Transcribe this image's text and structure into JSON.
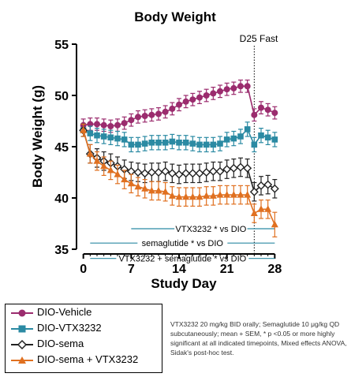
{
  "chart_data": {
    "type": "line",
    "title": "Body Weight",
    "xlabel": "Study Day",
    "ylabel": "Body Weight (g)",
    "xlim": [
      -1,
      29
    ],
    "ylim": [
      35,
      55
    ],
    "xticks": [
      0,
      7,
      14,
      21,
      28
    ],
    "yticks": [
      35,
      40,
      45,
      50,
      55
    ],
    "x": [
      0,
      1,
      2,
      3,
      4,
      5,
      6,
      7,
      8,
      9,
      10,
      11,
      12,
      13,
      14,
      15,
      16,
      17,
      18,
      19,
      20,
      21,
      22,
      23,
      24,
      25,
      26,
      27,
      28
    ],
    "annotation": "D25 Fast",
    "annotation_x": 25,
    "series": [
      {
        "name": "DIO-Vehicle",
        "color": "#9b2c6e",
        "marker": "circle",
        "values": [
          47.1,
          47.2,
          47.2,
          47.1,
          47.0,
          47.1,
          47.3,
          47.6,
          47.9,
          48.0,
          48.1,
          48.2,
          48.4,
          48.7,
          49.1,
          49.4,
          49.6,
          49.8,
          50.0,
          50.2,
          50.4,
          50.6,
          50.7,
          50.9,
          50.9,
          48.1,
          48.8,
          48.6,
          48.3
        ],
        "errors": [
          0.6,
          0.6,
          0.6,
          0.6,
          0.6,
          0.6,
          0.6,
          0.6,
          0.6,
          0.6,
          0.6,
          0.6,
          0.6,
          0.6,
          0.6,
          0.6,
          0.6,
          0.6,
          0.6,
          0.6,
          0.6,
          0.6,
          0.6,
          0.6,
          0.6,
          0.6,
          0.6,
          0.6,
          0.6
        ]
      },
      {
        "name": "DIO-VTX3232",
        "color": "#2b8aa3",
        "marker": "square",
        "values": [
          46.6,
          46.3,
          46.1,
          46.0,
          45.9,
          45.8,
          45.7,
          45.2,
          45.2,
          45.3,
          45.4,
          45.4,
          45.4,
          45.5,
          45.4,
          45.4,
          45.3,
          45.2,
          45.2,
          45.2,
          45.3,
          45.7,
          45.8,
          46.0,
          46.7,
          45.2,
          46.1,
          45.9,
          45.7
        ],
        "errors": [
          0.6,
          0.7,
          0.7,
          0.7,
          0.7,
          0.7,
          0.7,
          0.7,
          0.7,
          0.7,
          0.7,
          0.7,
          0.7,
          0.7,
          0.7,
          0.7,
          0.7,
          0.7,
          0.7,
          0.7,
          0.7,
          0.7,
          0.7,
          0.7,
          0.7,
          0.7,
          0.7,
          0.7,
          0.7
        ]
      },
      {
        "name": "DIO-sema",
        "color": "#222222",
        "marker": "diamond",
        "values": [
          46.6,
          44.3,
          43.9,
          43.6,
          43.4,
          43.1,
          42.8,
          42.6,
          42.5,
          42.4,
          42.5,
          42.5,
          42.6,
          42.4,
          42.3,
          42.4,
          42.4,
          42.4,
          42.5,
          42.6,
          42.6,
          42.8,
          42.9,
          43.0,
          42.9,
          40.6,
          41.2,
          41.3,
          40.9
        ],
        "errors": [
          0.6,
          0.9,
          0.9,
          0.9,
          0.9,
          0.9,
          0.9,
          0.9,
          0.9,
          0.9,
          0.9,
          0.9,
          0.9,
          0.9,
          0.9,
          0.9,
          0.9,
          0.9,
          0.9,
          0.9,
          0.9,
          0.9,
          0.9,
          0.9,
          0.9,
          0.9,
          0.9,
          0.9,
          0.9
        ]
      },
      {
        "name": "DIO-sema + VTX3232",
        "color": "#e07020",
        "marker": "triangle",
        "values": [
          46.6,
          44.3,
          43.6,
          43.1,
          42.7,
          42.3,
          41.8,
          41.4,
          41.1,
          40.9,
          40.7,
          40.7,
          40.6,
          40.2,
          40.1,
          40.1,
          40.1,
          40.1,
          40.2,
          40.2,
          40.3,
          40.3,
          40.3,
          40.3,
          40.3,
          38.5,
          38.9,
          38.9,
          37.4
        ],
        "errors": [
          0.6,
          0.9,
          0.9,
          0.9,
          0.9,
          0.9,
          0.9,
          0.9,
          0.9,
          0.9,
          0.9,
          0.9,
          0.9,
          0.9,
          0.9,
          0.9,
          0.9,
          0.9,
          0.9,
          0.9,
          0.9,
          0.9,
          0.9,
          0.9,
          0.9,
          0.9,
          0.9,
          0.9,
          1.2
        ]
      }
    ],
    "significance": [
      {
        "label": "VTX3232 * vs DIO",
        "from": 7,
        "to": 28
      },
      {
        "label": "semaglutide * vs DIO",
        "from": 1,
        "to": 28
      },
      {
        "label": "VTX3232 + semaglutide * vs DIO",
        "from": 1,
        "to": 28
      }
    ]
  },
  "footnote": "VTX3232 20 mg/kg BID orally; Semaglutide 10 μg/kg QD subcutaneously; mean + SEM, * p <0.05 or more highly significant at all indicated timepoints, Mixed effects ANOVA, Sidak's post-hoc test."
}
